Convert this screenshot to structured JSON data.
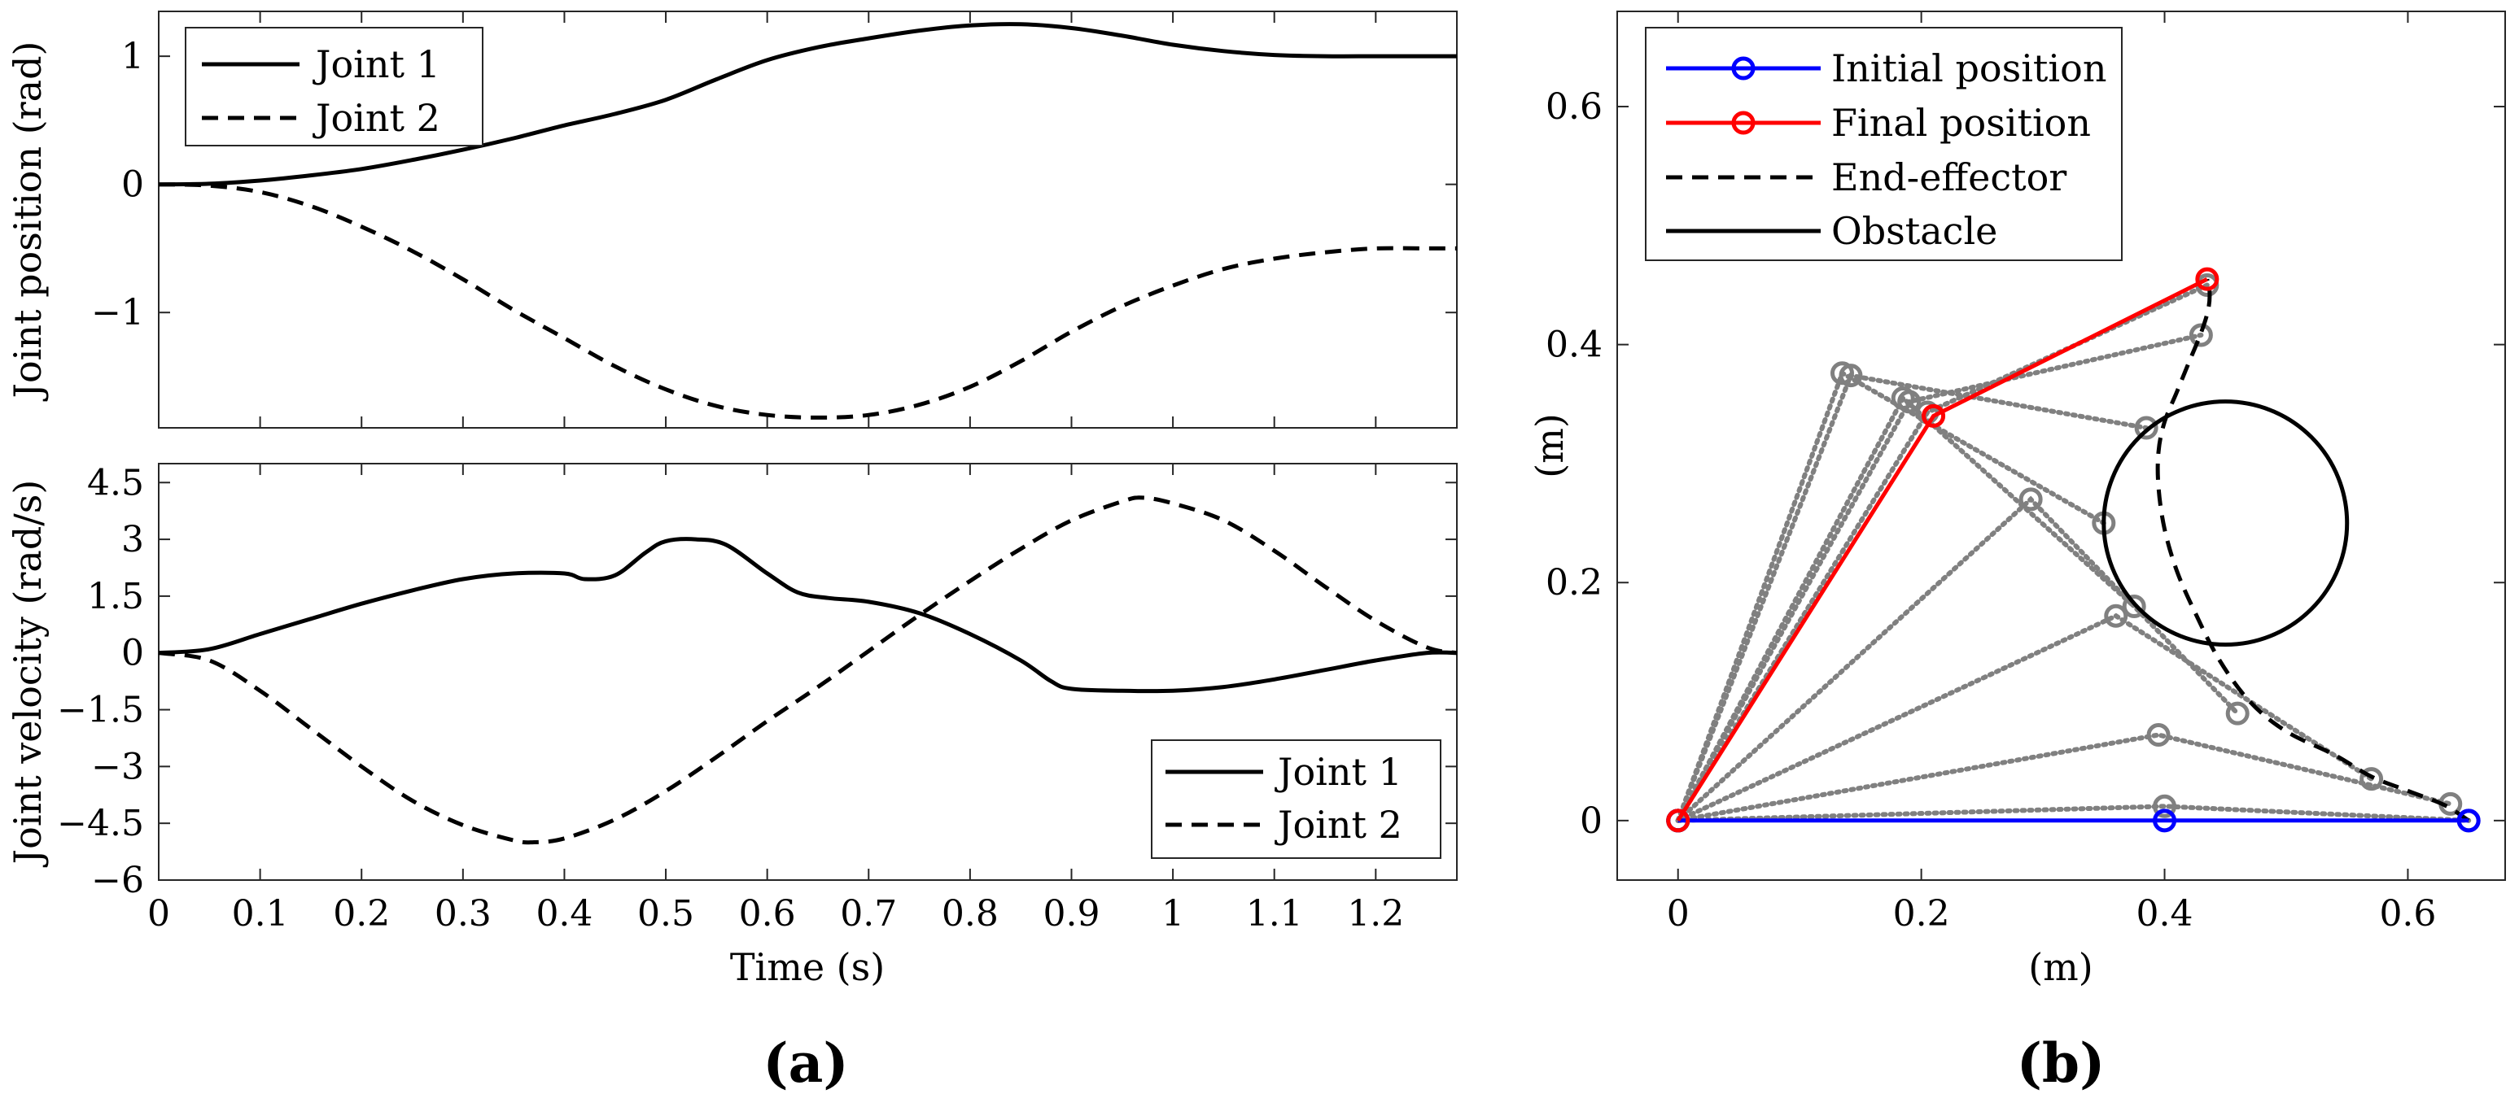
{
  "panel_labels": {
    "a": "(a)",
    "b": "(b)"
  },
  "chart_data": [
    {
      "id": "joint-position",
      "type": "line",
      "ylabel": "Joint position (rad)",
      "xlabel": "",
      "xlim": [
        0,
        1.28
      ],
      "ylim": [
        -1.9,
        1.35
      ],
      "yticks": [
        -1,
        0,
        1
      ],
      "ytick_labels": [
        "−1",
        "0",
        "1"
      ],
      "legend": {
        "position": "top-left",
        "entries": [
          "Joint 1",
          "Joint 2"
        ]
      },
      "series": [
        {
          "name": "Joint 1",
          "style": "solid",
          "x": [
            0,
            0.05,
            0.1,
            0.15,
            0.2,
            0.25,
            0.3,
            0.35,
            0.4,
            0.45,
            0.5,
            0.55,
            0.6,
            0.65,
            0.7,
            0.75,
            0.8,
            0.85,
            0.9,
            0.95,
            1.0,
            1.05,
            1.1,
            1.15,
            1.2,
            1.25,
            1.28
          ],
          "y": [
            0,
            0.005,
            0.03,
            0.07,
            0.12,
            0.19,
            0.27,
            0.36,
            0.46,
            0.55,
            0.66,
            0.82,
            0.97,
            1.07,
            1.14,
            1.2,
            1.24,
            1.25,
            1.22,
            1.16,
            1.09,
            1.04,
            1.01,
            1.0,
            1.0,
            1.0,
            1.0
          ]
        },
        {
          "name": "Joint 2",
          "style": "dashed",
          "x": [
            0,
            0.05,
            0.1,
            0.15,
            0.2,
            0.25,
            0.3,
            0.35,
            0.4,
            0.45,
            0.5,
            0.55,
            0.6,
            0.65,
            0.7,
            0.75,
            0.8,
            0.85,
            0.9,
            0.95,
            1.0,
            1.05,
            1.1,
            1.15,
            1.2,
            1.25,
            1.28
          ],
          "y": [
            0,
            -0.01,
            -0.06,
            -0.17,
            -0.33,
            -0.52,
            -0.74,
            -0.98,
            -1.2,
            -1.42,
            -1.6,
            -1.73,
            -1.8,
            -1.82,
            -1.8,
            -1.72,
            -1.58,
            -1.38,
            -1.15,
            -0.95,
            -0.79,
            -0.66,
            -0.58,
            -0.53,
            -0.5,
            -0.5,
            -0.5
          ]
        }
      ]
    },
    {
      "id": "joint-velocity",
      "type": "line",
      "ylabel": "Joint velocity (rad/s)",
      "xlabel": "Time (s)",
      "xlim": [
        0,
        1.28
      ],
      "ylim": [
        -6,
        5.0
      ],
      "xticks": [
        0,
        0.1,
        0.2,
        0.3,
        0.4,
        0.5,
        0.6,
        0.7,
        0.8,
        0.9,
        1,
        1.1,
        1.2
      ],
      "xtick_labels": [
        "0",
        "0.1",
        "0.2",
        "0.3",
        "0.4",
        "0.5",
        "0.6",
        "0.7",
        "0.8",
        "0.9",
        "1",
        "1.1",
        "1.2"
      ],
      "yticks": [
        -6,
        -4.5,
        -3,
        -1.5,
        0,
        1.5,
        3,
        4.5
      ],
      "ytick_labels": [
        "−6",
        "−4.5",
        "−3",
        "−1.5",
        "0",
        "1.5",
        "3",
        "4.5"
      ],
      "legend": {
        "position": "bottom-right",
        "entries": [
          "Joint 1",
          "Joint 2"
        ]
      },
      "series": [
        {
          "name": "Joint 1",
          "style": "solid",
          "x": [
            0,
            0.05,
            0.1,
            0.15,
            0.2,
            0.25,
            0.3,
            0.35,
            0.4,
            0.42,
            0.45,
            0.48,
            0.5,
            0.53,
            0.56,
            0.6,
            0.63,
            0.66,
            0.7,
            0.75,
            0.8,
            0.85,
            0.88,
            0.9,
            0.95,
            1.0,
            1.05,
            1.1,
            1.15,
            1.2,
            1.25,
            1.28
          ],
          "y": [
            0,
            0.1,
            0.5,
            0.9,
            1.3,
            1.65,
            1.95,
            2.1,
            2.1,
            1.95,
            2.05,
            2.65,
            2.95,
            3.0,
            2.85,
            2.1,
            1.6,
            1.45,
            1.35,
            1.05,
            0.5,
            -0.2,
            -0.75,
            -0.95,
            -1.0,
            -1.0,
            -0.9,
            -0.7,
            -0.45,
            -0.2,
            0,
            0
          ]
        },
        {
          "name": "Joint 2",
          "style": "dashed",
          "x": [
            0,
            0.05,
            0.1,
            0.15,
            0.2,
            0.25,
            0.3,
            0.35,
            0.37,
            0.4,
            0.45,
            0.5,
            0.55,
            0.6,
            0.65,
            0.7,
            0.75,
            0.8,
            0.85,
            0.9,
            0.95,
            0.97,
            1.0,
            1.05,
            1.1,
            1.15,
            1.2,
            1.25,
            1.28
          ],
          "y": [
            0,
            -0.2,
            -1.0,
            -2.0,
            -3.0,
            -3.9,
            -4.55,
            -4.95,
            -5.0,
            -4.9,
            -4.4,
            -3.65,
            -2.75,
            -1.8,
            -0.9,
            0.05,
            1.0,
            1.9,
            2.75,
            3.5,
            4.0,
            4.1,
            3.95,
            3.5,
            2.7,
            1.75,
            0.85,
            0.15,
            0
          ]
        }
      ]
    },
    {
      "id": "workspace",
      "type": "line",
      "xlabel": "(m)",
      "ylabel": "(m)",
      "xlim": [
        -0.05,
        0.68
      ],
      "ylim": [
        -0.05,
        0.68
      ],
      "xticks": [
        0,
        0.2,
        0.4,
        0.6
      ],
      "xtick_labels": [
        "0",
        "0.2",
        "0.4",
        "0.6"
      ],
      "yticks": [
        0,
        0.2,
        0.4,
        0.6
      ],
      "ytick_labels": [
        "0",
        "0.2",
        "0.4",
        "0.6"
      ],
      "legend": {
        "position": "top-left",
        "entries": [
          "Initial position",
          "Final position",
          "End-effector",
          "Obstacle"
        ]
      },
      "colors": {
        "initial": "#0000ff",
        "final": "#ff0000",
        "intermediate": "#808080",
        "end_effector": "#000000",
        "obstacle": "#000000"
      },
      "base": [
        0,
        0
      ],
      "initial_position": {
        "elbow": [
          0.4,
          0
        ],
        "tip": [
          0.65,
          0
        ]
      },
      "final_position": {
        "elbow": [
          0.21,
          0.34
        ],
        "tip": [
          0.435,
          0.455
        ]
      },
      "intermediate_positions": [
        {
          "elbow": [
            0.4,
            0.012
          ],
          "tip": [
            0.65,
            0.0
          ]
        },
        {
          "elbow": [
            0.395,
            0.072
          ],
          "tip": [
            0.635,
            0.014
          ]
        },
        {
          "elbow": [
            0.36,
            0.172
          ],
          "tip": [
            0.57,
            0.035
          ]
        },
        {
          "elbow": [
            0.29,
            0.27
          ],
          "tip": [
            0.46,
            0.09
          ]
        },
        {
          "elbow": [
            0.185,
            0.355
          ],
          "tip": [
            0.375,
            0.18
          ]
        },
        {
          "elbow": [
            0.135,
            0.376
          ],
          "tip": [
            0.35,
            0.25
          ]
        },
        {
          "elbow": [
            0.142,
            0.374
          ],
          "tip": [
            0.385,
            0.33
          ]
        },
        {
          "elbow": [
            0.19,
            0.352
          ],
          "tip": [
            0.43,
            0.408
          ]
        },
        {
          "elbow": [
            0.205,
            0.343
          ],
          "tip": [
            0.435,
            0.45
          ]
        }
      ],
      "end_effector_path": {
        "x": [
          0.65,
          0.63,
          0.6,
          0.57,
          0.54,
          0.5,
          0.47,
          0.445,
          0.425,
          0.41,
          0.4,
          0.395,
          0.395,
          0.4,
          0.41,
          0.42,
          0.43,
          0.436,
          0.437,
          0.435
        ],
        "y": [
          0.0,
          0.013,
          0.025,
          0.037,
          0.055,
          0.075,
          0.1,
          0.135,
          0.175,
          0.21,
          0.245,
          0.28,
          0.31,
          0.335,
          0.36,
          0.385,
          0.41,
          0.43,
          0.445,
          0.455
        ]
      },
      "obstacle": {
        "center": [
          0.45,
          0.25
        ],
        "radius": 0.1
      }
    }
  ]
}
